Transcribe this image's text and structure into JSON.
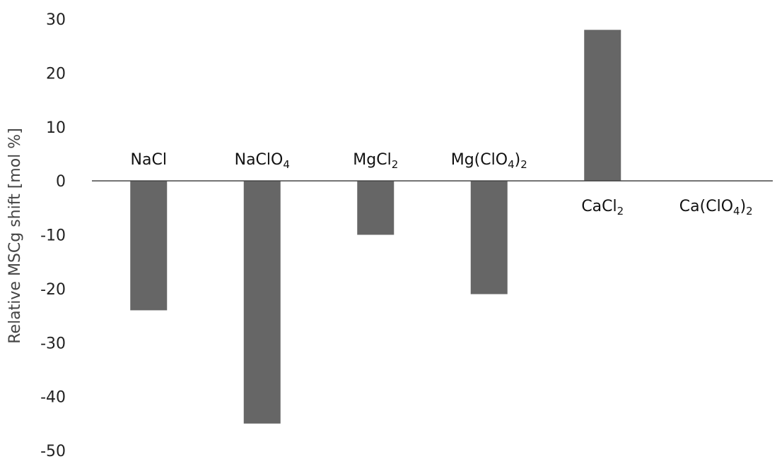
{
  "chart_data": {
    "type": "bar",
    "title": "",
    "xlabel": "",
    "ylabel": "Relative MSCg shift [mol %]",
    "ylim": [
      -50,
      30
    ],
    "yticks": [
      30,
      20,
      10,
      0,
      -10,
      -20,
      -30,
      -40,
      -50
    ],
    "grid": false,
    "categories": [
      {
        "name": "NaCl",
        "base": "NaCl",
        "sub": "",
        "tail": "",
        "sub2": ""
      },
      {
        "name": "NaClO4",
        "base": "NaClO",
        "sub": "4",
        "tail": "",
        "sub2": ""
      },
      {
        "name": "MgCl2",
        "base": "MgCl",
        "sub": "2",
        "tail": "",
        "sub2": ""
      },
      {
        "name": "Mg(ClO4)2",
        "base": "Mg(ClO",
        "sub": "4",
        "tail": ")",
        "sub2": "2"
      },
      {
        "name": "CaCl2",
        "base": "CaCl",
        "sub": "2",
        "tail": "",
        "sub2": ""
      },
      {
        "name": "Ca(ClO4)2",
        "base": "Ca(ClO",
        "sub": "4",
        "tail": ")",
        "sub2": "2"
      }
    ],
    "values": [
      -24,
      -45,
      -10,
      -21,
      28,
      0
    ],
    "bar_color": "#666666",
    "axis_color": "#444444"
  }
}
